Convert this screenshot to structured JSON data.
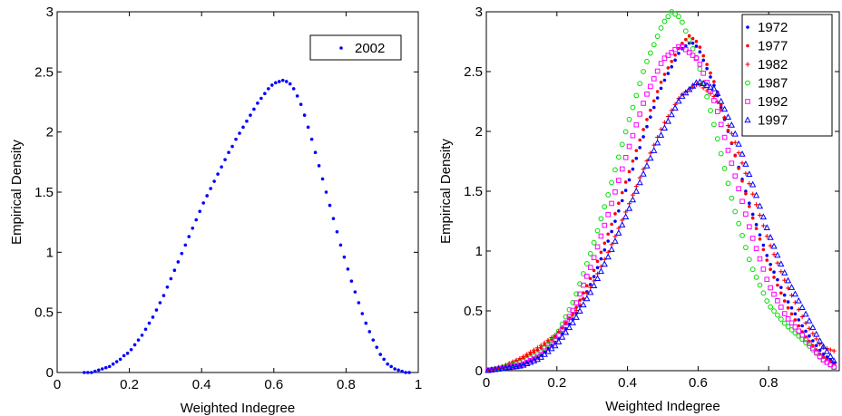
{
  "chart_data": [
    {
      "type": "scatter",
      "xlabel": "Weighted Indegree",
      "ylabel": "Empirical Density",
      "xlim": [
        0,
        1
      ],
      "ylim": [
        0,
        3
      ],
      "xticks": [
        "0",
        "0.2",
        "0.4",
        "0.6",
        "0.8",
        "1"
      ],
      "yticks": [
        "0",
        "0.5",
        "1",
        "1.5",
        "2",
        "2.5",
        "3"
      ],
      "grid": false,
      "legend_position": "top-right",
      "series": [
        {
          "name": "2002",
          "color": "#0000ff",
          "marker": "dot",
          "points": [
            [
              0.075,
              0.0
            ],
            [
              0.085,
              0.0
            ],
            [
              0.095,
              0.0
            ],
            [
              0.105,
              0.01
            ],
            [
              0.115,
              0.02
            ],
            [
              0.125,
              0.03
            ],
            [
              0.135,
              0.04
            ],
            [
              0.145,
              0.05
            ],
            [
              0.155,
              0.07
            ],
            [
              0.165,
              0.09
            ],
            [
              0.175,
              0.11
            ],
            [
              0.185,
              0.14
            ],
            [
              0.195,
              0.16
            ],
            [
              0.205,
              0.19
            ],
            [
              0.215,
              0.23
            ],
            [
              0.225,
              0.27
            ],
            [
              0.235,
              0.31
            ],
            [
              0.245,
              0.36
            ],
            [
              0.255,
              0.41
            ],
            [
              0.265,
              0.46
            ],
            [
              0.275,
              0.52
            ],
            [
              0.285,
              0.58
            ],
            [
              0.295,
              0.64
            ],
            [
              0.305,
              0.71
            ],
            [
              0.315,
              0.78
            ],
            [
              0.325,
              0.85
            ],
            [
              0.335,
              0.92
            ],
            [
              0.345,
              0.99
            ],
            [
              0.355,
              1.06
            ],
            [
              0.365,
              1.13
            ],
            [
              0.375,
              1.2
            ],
            [
              0.385,
              1.27
            ],
            [
              0.395,
              1.34
            ],
            [
              0.405,
              1.41
            ],
            [
              0.415,
              1.47
            ],
            [
              0.425,
              1.53
            ],
            [
              0.435,
              1.59
            ],
            [
              0.445,
              1.65
            ],
            [
              0.455,
              1.71
            ],
            [
              0.465,
              1.77
            ],
            [
              0.475,
              1.83
            ],
            [
              0.485,
              1.88
            ],
            [
              0.495,
              1.94
            ],
            [
              0.505,
              1.99
            ],
            [
              0.515,
              2.04
            ],
            [
              0.525,
              2.09
            ],
            [
              0.535,
              2.14
            ],
            [
              0.545,
              2.19
            ],
            [
              0.555,
              2.24
            ],
            [
              0.565,
              2.28
            ],
            [
              0.575,
              2.32
            ],
            [
              0.585,
              2.36
            ],
            [
              0.595,
              2.39
            ],
            [
              0.605,
              2.41
            ],
            [
              0.615,
              2.42
            ],
            [
              0.625,
              2.43
            ],
            [
              0.635,
              2.42
            ],
            [
              0.645,
              2.4
            ],
            [
              0.655,
              2.36
            ],
            [
              0.665,
              2.3
            ],
            [
              0.675,
              2.23
            ],
            [
              0.685,
              2.14
            ],
            [
              0.695,
              2.04
            ],
            [
              0.705,
              1.94
            ],
            [
              0.715,
              1.83
            ],
            [
              0.725,
              1.72
            ],
            [
              0.735,
              1.61
            ],
            [
              0.745,
              1.5
            ],
            [
              0.755,
              1.39
            ],
            [
              0.765,
              1.28
            ],
            [
              0.775,
              1.17
            ],
            [
              0.785,
              1.06
            ],
            [
              0.795,
              0.96
            ],
            [
              0.805,
              0.86
            ],
            [
              0.815,
              0.76
            ],
            [
              0.825,
              0.67
            ],
            [
              0.835,
              0.58
            ],
            [
              0.845,
              0.49
            ],
            [
              0.855,
              0.41
            ],
            [
              0.865,
              0.34
            ],
            [
              0.875,
              0.27
            ],
            [
              0.885,
              0.21
            ],
            [
              0.895,
              0.15
            ],
            [
              0.905,
              0.11
            ],
            [
              0.915,
              0.07
            ],
            [
              0.925,
              0.05
            ],
            [
              0.935,
              0.03
            ],
            [
              0.945,
              0.02
            ],
            [
              0.955,
              0.01
            ],
            [
              0.965,
              0.0
            ],
            [
              0.975,
              0.0
            ]
          ]
        }
      ]
    },
    {
      "type": "scatter",
      "xlabel": "Weighted Indegree",
      "ylabel": "Empirical Density",
      "xlim": [
        0,
        1
      ],
      "ylim": [
        0,
        3
      ],
      "xticks": [
        "0",
        "0.2",
        "0.4",
        "0.6",
        "0.8"
      ],
      "yticks": [
        "0",
        "0.5",
        "1",
        "1.5",
        "2",
        "2.5",
        "3"
      ],
      "grid": false,
      "legend_position": "top-right",
      "series": [
        {
          "name": "1972",
          "color": "#0000ff",
          "marker": "dot",
          "peak": [
            0.58,
            2.75
          ],
          "curve": [
            [
              0.0,
              0.0
            ],
            [
              0.05,
              0.02
            ],
            [
              0.1,
              0.05
            ],
            [
              0.15,
              0.12
            ],
            [
              0.2,
              0.25
            ],
            [
              0.25,
              0.45
            ],
            [
              0.3,
              0.75
            ],
            [
              0.35,
              1.12
            ],
            [
              0.4,
              1.55
            ],
            [
              0.45,
              2.0
            ],
            [
              0.5,
              2.4
            ],
            [
              0.55,
              2.68
            ],
            [
              0.58,
              2.75
            ],
            [
              0.6,
              2.7
            ],
            [
              0.65,
              2.35
            ],
            [
              0.7,
              1.85
            ],
            [
              0.75,
              1.35
            ],
            [
              0.8,
              0.92
            ],
            [
              0.85,
              0.6
            ],
            [
              0.9,
              0.35
            ],
            [
              0.95,
              0.15
            ],
            [
              1.0,
              0.03
            ]
          ]
        },
        {
          "name": "1977",
          "color": "#ff0000",
          "marker": "dot",
          "peak": [
            0.575,
            2.8
          ],
          "curve": [
            [
              0.0,
              0.0
            ],
            [
              0.05,
              0.04
            ],
            [
              0.1,
              0.1
            ],
            [
              0.15,
              0.18
            ],
            [
              0.2,
              0.3
            ],
            [
              0.25,
              0.5
            ],
            [
              0.3,
              0.8
            ],
            [
              0.35,
              1.18
            ],
            [
              0.4,
              1.62
            ],
            [
              0.45,
              2.06
            ],
            [
              0.5,
              2.45
            ],
            [
              0.55,
              2.72
            ],
            [
              0.575,
              2.8
            ],
            [
              0.6,
              2.74
            ],
            [
              0.65,
              2.38
            ],
            [
              0.7,
              1.85
            ],
            [
              0.75,
              1.32
            ],
            [
              0.8,
              0.88
            ],
            [
              0.85,
              0.55
            ],
            [
              0.9,
              0.3
            ],
            [
              0.95,
              0.12
            ],
            [
              1.0,
              0.03
            ]
          ]
        },
        {
          "name": "1982",
          "color": "#ff0000",
          "marker": "plus",
          "peak": [
            0.6,
            2.4
          ],
          "curve": [
            [
              0.0,
              0.0
            ],
            [
              0.05,
              0.04
            ],
            [
              0.1,
              0.11
            ],
            [
              0.15,
              0.2
            ],
            [
              0.2,
              0.31
            ],
            [
              0.25,
              0.48
            ],
            [
              0.3,
              0.72
            ],
            [
              0.35,
              1.02
            ],
            [
              0.4,
              1.36
            ],
            [
              0.45,
              1.72
            ],
            [
              0.5,
              2.05
            ],
            [
              0.55,
              2.3
            ],
            [
              0.6,
              2.4
            ],
            [
              0.65,
              2.28
            ],
            [
              0.7,
              1.95
            ],
            [
              0.75,
              1.52
            ],
            [
              0.8,
              1.08
            ],
            [
              0.85,
              0.72
            ],
            [
              0.9,
              0.42
            ],
            [
              0.95,
              0.2
            ],
            [
              1.0,
              0.15
            ]
          ]
        },
        {
          "name": "1987",
          "color": "#00dd00",
          "marker": "circle",
          "peak": [
            0.525,
            3.0
          ],
          "curve": [
            [
              0.0,
              0.0
            ],
            [
              0.05,
              0.03
            ],
            [
              0.1,
              0.07
            ],
            [
              0.15,
              0.14
            ],
            [
              0.2,
              0.3
            ],
            [
              0.25,
              0.6
            ],
            [
              0.3,
              1.02
            ],
            [
              0.35,
              1.52
            ],
            [
              0.4,
              2.05
            ],
            [
              0.45,
              2.55
            ],
            [
              0.5,
              2.9
            ],
            [
              0.525,
              3.0
            ],
            [
              0.55,
              2.95
            ],
            [
              0.6,
              2.58
            ],
            [
              0.65,
              2.0
            ],
            [
              0.7,
              1.38
            ],
            [
              0.75,
              0.88
            ],
            [
              0.8,
              0.55
            ],
            [
              0.85,
              0.38
            ],
            [
              0.9,
              0.25
            ],
            [
              0.95,
              0.1
            ],
            [
              1.0,
              0.0
            ]
          ]
        },
        {
          "name": "1992",
          "color": "#ff00ff",
          "marker": "square",
          "peak": [
            0.55,
            2.72
          ],
          "curve": [
            [
              0.0,
              0.0
            ],
            [
              0.05,
              0.02
            ],
            [
              0.1,
              0.05
            ],
            [
              0.15,
              0.12
            ],
            [
              0.2,
              0.27
            ],
            [
              0.25,
              0.53
            ],
            [
              0.3,
              0.9
            ],
            [
              0.35,
              1.35
            ],
            [
              0.4,
              1.83
            ],
            [
              0.45,
              2.28
            ],
            [
              0.5,
              2.6
            ],
            [
              0.55,
              2.72
            ],
            [
              0.6,
              2.6
            ],
            [
              0.65,
              2.22
            ],
            [
              0.7,
              1.68
            ],
            [
              0.75,
              1.15
            ],
            [
              0.8,
              0.72
            ],
            [
              0.85,
              0.45
            ],
            [
              0.9,
              0.28
            ],
            [
              0.95,
              0.1
            ],
            [
              1.0,
              0.0
            ]
          ]
        },
        {
          "name": "1997",
          "color": "#0000ff",
          "marker": "triangle",
          "peak": [
            0.6,
            2.42
          ],
          "curve": [
            [
              0.0,
              0.0
            ],
            [
              0.05,
              0.02
            ],
            [
              0.1,
              0.04
            ],
            [
              0.15,
              0.1
            ],
            [
              0.2,
              0.22
            ],
            [
              0.25,
              0.42
            ],
            [
              0.3,
              0.68
            ],
            [
              0.35,
              0.98
            ],
            [
              0.4,
              1.32
            ],
            [
              0.45,
              1.68
            ],
            [
              0.5,
              2.0
            ],
            [
              0.55,
              2.28
            ],
            [
              0.6,
              2.42
            ],
            [
              0.65,
              2.35
            ],
            [
              0.7,
              2.02
            ],
            [
              0.75,
              1.6
            ],
            [
              0.8,
              1.15
            ],
            [
              0.85,
              0.78
            ],
            [
              0.9,
              0.5
            ],
            [
              0.95,
              0.22
            ],
            [
              1.0,
              0.02
            ]
          ]
        }
      ]
    }
  ]
}
